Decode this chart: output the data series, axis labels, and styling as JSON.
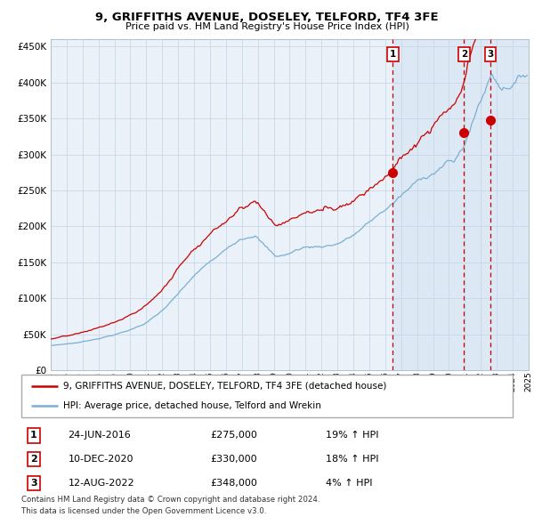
{
  "title": "9, GRIFFITHS AVENUE, DOSELEY, TELFORD, TF4 3FE",
  "subtitle": "Price paid vs. HM Land Registry's House Price Index (HPI)",
  "ylabel_ticks": [
    "£0",
    "£50K",
    "£100K",
    "£150K",
    "£200K",
    "£250K",
    "£300K",
    "£350K",
    "£400K",
    "£450K"
  ],
  "ytick_vals": [
    0,
    50000,
    100000,
    150000,
    200000,
    250000,
    300000,
    350000,
    400000,
    450000
  ],
  "ylim": [
    0,
    460000
  ],
  "sale_prices": [
    275000,
    330000,
    348000
  ],
  "sale_labels": [
    "1",
    "2",
    "3"
  ],
  "sale_annotations": [
    {
      "label": "1",
      "date": "24-JUN-2016",
      "price": "£275,000",
      "pct": "19%",
      "dir": "↑",
      "idx": "HPI"
    },
    {
      "label": "2",
      "date": "10-DEC-2020",
      "price": "£330,000",
      "pct": "18%",
      "dir": "↑",
      "idx": "HPI"
    },
    {
      "label": "3",
      "date": "12-AUG-2022",
      "price": "£348,000",
      "pct": "4%",
      "dir": "↑",
      "idx": "HPI"
    }
  ],
  "legend_entries": [
    "9, GRIFFITHS AVENUE, DOSELEY, TELFORD, TF4 3FE (detached house)",
    "HPI: Average price, detached house, Telford and Wrekin"
  ],
  "footer_lines": [
    "Contains HM Land Registry data © Crown copyright and database right 2024.",
    "This data is licensed under the Open Government Licence v3.0."
  ],
  "hpi_color": "#7bafd4",
  "property_color": "#cc0000",
  "dot_color": "#cc0000",
  "vline_color": "#cc0000",
  "shade_color": "#dce9f5",
  "grid_color": "#c8d8e8",
  "plot_bg_color": "#eaf1f8",
  "box_color": "#cc0000",
  "fig_bg": "#ffffff"
}
